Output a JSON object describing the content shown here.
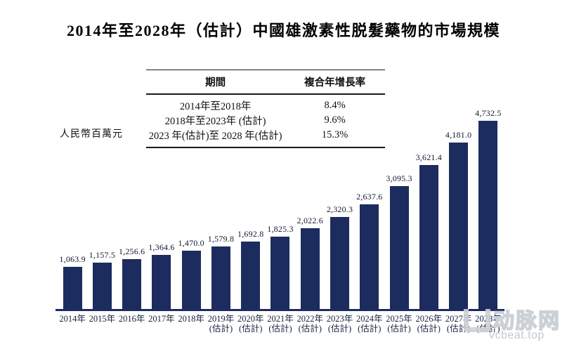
{
  "title": "2014年至2028年（估計）中國雄激素性脱髮藥物的市場規模",
  "unit_label": "人民幣百萬元",
  "cagr_table": {
    "headers": [
      "期間",
      "複合年增長率"
    ],
    "rows": [
      {
        "period": "2014年至2018年",
        "cagr": "8.4%"
      },
      {
        "period": "2018年至2023年 (估計)",
        "cagr": "9.6%"
      },
      {
        "period": "2023 年(估計)至 2028 年(估計)",
        "cagr": "15.3%"
      }
    ]
  },
  "watermark": {
    "logo_icon": "u-bracket-logo",
    "logo_text": "动脉网",
    "site": "vcbeat.top"
  },
  "colors": {
    "bar": "#1c2c5e",
    "axis_line": "#1c2c5e",
    "text": "#111111",
    "watermark": "#ccd1d5"
  },
  "chart_data": {
    "type": "bar",
    "title": "2014年至2028年（估計）中國雄激素性脱髮藥物的市場規模",
    "xlabel": "",
    "ylabel": "人民幣百萬元",
    "ylim": [
      0,
      5000
    ],
    "grid": false,
    "legend": "none",
    "estimate_suffix": "(估計)",
    "categories": [
      "2014年",
      "2015年",
      "2016年",
      "2017年",
      "2018年",
      "2019年",
      "2020年",
      "2021年",
      "2022年",
      "2023年",
      "2024年",
      "2025年",
      "2026年",
      "2027年",
      "2028年"
    ],
    "estimated_flags": [
      false,
      false,
      false,
      false,
      false,
      true,
      true,
      true,
      true,
      true,
      true,
      true,
      true,
      true,
      true
    ],
    "values": [
      1063.9,
      1157.5,
      1256.6,
      1364.6,
      1470.0,
      1579.8,
      1692.8,
      1825.3,
      2022.6,
      2320.3,
      2637.6,
      3095.3,
      3621.4,
      4181.0,
      4732.5
    ],
    "value_labels": [
      "1,063.9",
      "1,157.5",
      "1,256.6",
      "1,364.6",
      "1,470.0",
      "1,579.8",
      "1,692.8",
      "1,825.3",
      "2,022.6",
      "2,320.3",
      "2,637.6",
      "3,095.3",
      "3,621.4",
      "4,181.0",
      "4,732.5"
    ]
  }
}
